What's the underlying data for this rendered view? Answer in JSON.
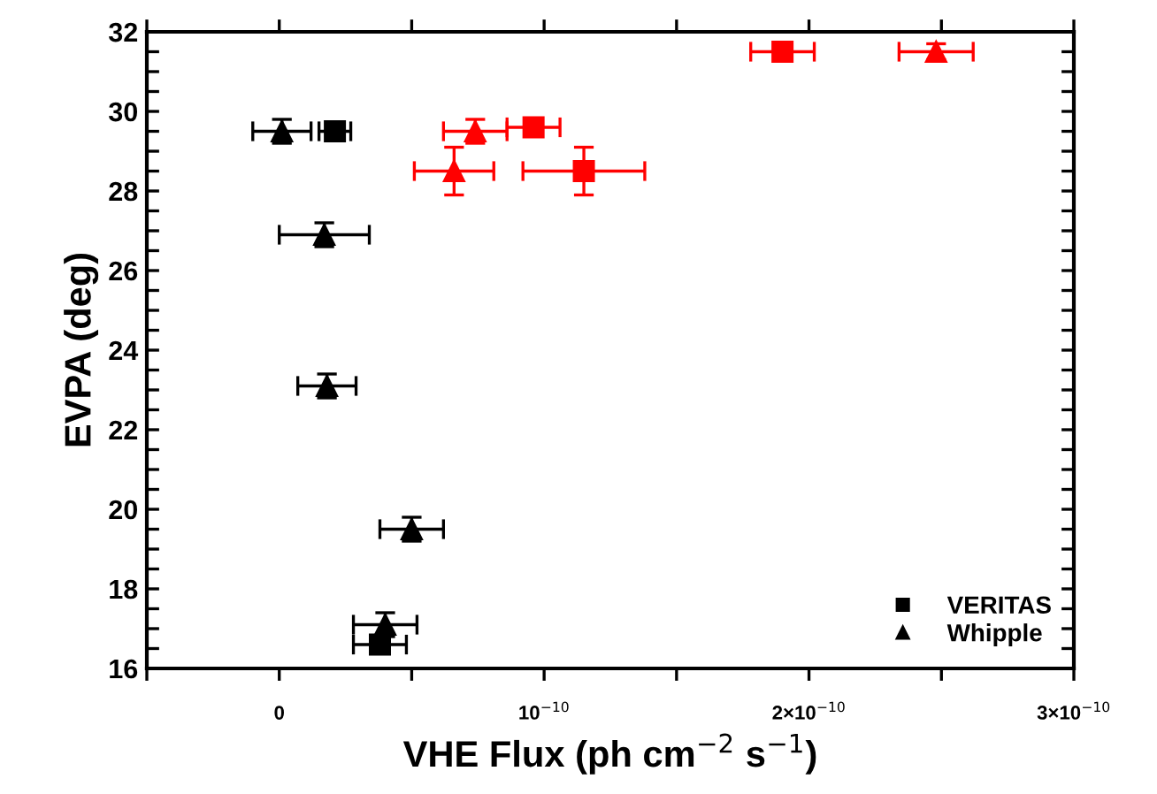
{
  "chart_data": {
    "type": "scatter",
    "xlabel": "VHE Flux (ph cm$^{−2}$ s$^{−1}$)",
    "ylabel": "EVPA (deg)",
    "xlim": [
      -5e-11,
      3e-10
    ],
    "xticks": [
      {
        "value": -5e-11,
        "label": null
      },
      {
        "value": 0,
        "label": "0"
      },
      {
        "value": 5e-11,
        "label": null
      },
      {
        "value": 1e-10,
        "label": "10$^{−10}$"
      },
      {
        "value": 1.5e-10,
        "label": null
      },
      {
        "value": 2e-10,
        "label": "2×10$^{−10}$"
      },
      {
        "value": 2.5e-10,
        "label": null
      },
      {
        "value": 3e-10,
        "label": "3×10$^{−10}$"
      }
    ],
    "ylim": [
      16,
      32
    ],
    "yticks": [
      16,
      {
        "value": 16.5,
        "label": null
      },
      {
        "value": 17,
        "label": null
      },
      {
        "value": 17.5,
        "label": null
      },
      18,
      {
        "value": 18.5,
        "label": null
      },
      {
        "value": 19,
        "label": null
      },
      {
        "value": 19.5,
        "label": null
      },
      20,
      {
        "value": 20.5,
        "label": null
      },
      {
        "value": 21,
        "label": null
      },
      {
        "value": 21.5,
        "label": null
      },
      22,
      {
        "value": 22.5,
        "label": null
      },
      {
        "value": 23,
        "label": null
      },
      {
        "value": 23.5,
        "label": null
      },
      24,
      {
        "value": 24.5,
        "label": null
      },
      {
        "value": 25,
        "label": null
      },
      {
        "value": 25.5,
        "label": null
      },
      26,
      {
        "value": 26.5,
        "label": null
      },
      {
        "value": 27,
        "label": null
      },
      {
        "value": 27.5,
        "label": null
      },
      28,
      {
        "value": 28.5,
        "label": null
      },
      {
        "value": 29,
        "label": null
      },
      {
        "value": 29.5,
        "label": null
      },
      30,
      {
        "value": 30.5,
        "label": null
      },
      {
        "value": 31,
        "label": null
      },
      {
        "value": 31.5,
        "label": null
      },
      32
    ],
    "grid": false,
    "legend": "bottom right",
    "series": [
      {
        "name": "VERITAS",
        "color": "#000000",
        "marker": "square",
        "x": [
          2.1e-11,
          3.8e-11
        ],
        "values": [
          29.5,
          16.6
        ],
        "xerrors": [
          6e-12,
          1e-11
        ],
        "errors": [
          0.2,
          0.2
        ]
      },
      {
        "name": "Whipple",
        "color": "#000000",
        "marker": "triangle",
        "x": [
          1e-12,
          1.7e-11,
          1.8e-11,
          5e-11,
          4e-11
        ],
        "values": [
          29.5,
          26.9,
          23.1,
          19.5,
          17.1
        ],
        "xerrors": [
          1.1e-11,
          1.7e-11,
          1.1e-11,
          1.2e-11,
          1.2e-11
        ],
        "errors": [
          0.3,
          0.3,
          0.3,
          0.3,
          0.3
        ]
      },
      {
        "color": "#ff0000",
        "marker": "square",
        "x": [
          9.6e-11,
          1.15e-10,
          1.9e-10
        ],
        "values": [
          29.6,
          28.5,
          31.5
        ],
        "xerrors": [
          1e-11,
          2.3e-11,
          1.2e-11
        ],
        "errors": [
          0.2,
          0.6,
          0.2
        ]
      },
      {
        "color": "#ff0000",
        "marker": "triangle",
        "x": [
          7.4e-11,
          6.6e-11,
          2.48e-10
        ],
        "values": [
          29.5,
          28.5,
          31.5
        ],
        "xerrors": [
          1.2e-11,
          1.5e-11,
          1.4e-11
        ],
        "errors": [
          0.3,
          0.6,
          0.2
        ]
      }
    ]
  }
}
